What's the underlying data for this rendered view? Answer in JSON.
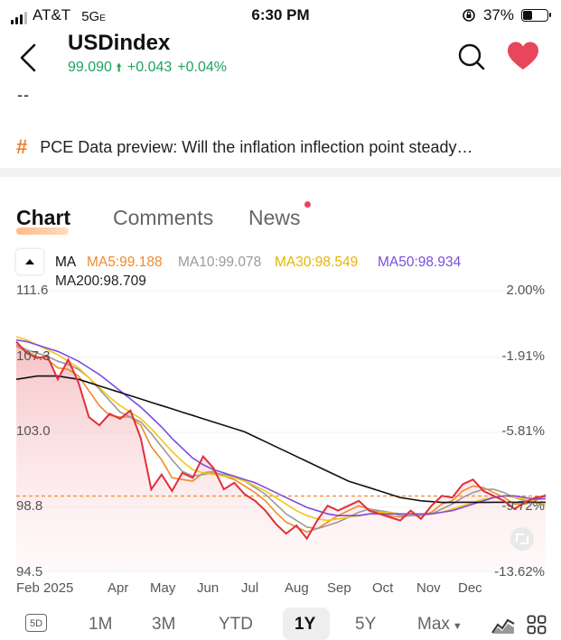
{
  "status": {
    "carrier": "AT&T",
    "network": "5G",
    "network_suffix": "E",
    "time": "6:30 PM",
    "battery": "37%"
  },
  "header": {
    "title": "USDindex",
    "price": "99.090",
    "change": "+0.043",
    "change_pct": "+0.04%",
    "placeholder": "--"
  },
  "news_ticker": "PCE Data preview: Will the inflation inflection point steady…",
  "tabs": {
    "chart": "Chart",
    "comments": "Comments",
    "news": "News"
  },
  "ma": {
    "label": "MA",
    "ma5": "MA5:99.188",
    "ma10": "MA10:99.078",
    "ma30": "MA30:98.549",
    "ma50": "MA50:98.934",
    "ma200": "MA200:98.709"
  },
  "colors": {
    "ma5": "#f08a2c",
    "ma10": "#9a9a9a",
    "ma30": "#f5c518",
    "ma50": "#7b4ce0",
    "ma200": "#111111",
    "price": "#e0303a",
    "up": "#1ea35c",
    "heart": "#e8465a"
  },
  "chart_data": {
    "type": "line",
    "x_ticks": [
      "Feb 2025",
      "Apr",
      "May",
      "Jun",
      "Jul",
      "Aug",
      "Sep",
      "Oct",
      "Nov",
      "Dec"
    ],
    "y_ticks": [
      "111.6",
      "107.3",
      "103.0",
      "98.8",
      "94.5"
    ],
    "y_right_ticks": [
      "2.00%",
      "-1.91%",
      "-5.81%",
      "-9.72%",
      "-13.62%"
    ],
    "ylim": [
      94.5,
      111.6
    ],
    "last_price": 99.09,
    "series": [
      {
        "name": "Price",
        "values": [
          108.5,
          107.8,
          107.5,
          107.6,
          106.2,
          107.4,
          106.0,
          103.9,
          103.4,
          104.1,
          103.8,
          104.3,
          102.6,
          99.5,
          100.4,
          99.4,
          100.5,
          100.2,
          101.5,
          100.8,
          99.5,
          99.9,
          99.2,
          98.8,
          98.2,
          97.4,
          96.8,
          97.3,
          96.5,
          97.6,
          98.5,
          98.2,
          98.5,
          98.8,
          98.2,
          98.0,
          97.8,
          97.6,
          98.2,
          97.7,
          98.5,
          99.1,
          99.0,
          99.8,
          100.1,
          99.4,
          99.1,
          98.8,
          98.3,
          98.7,
          99.0,
          99.09
        ]
      },
      {
        "name": "MA5",
        "values": [
          108.2,
          107.9,
          107.6,
          107.4,
          106.9,
          106.8,
          106.4,
          105.5,
          104.6,
          104.0,
          103.9,
          103.9,
          103.4,
          102.1,
          101.3,
          100.2,
          100.1,
          100.0,
          100.5,
          100.6,
          100.3,
          100.1,
          99.7,
          99.3,
          98.8,
          98.1,
          97.5,
          97.2,
          96.9,
          97.1,
          97.5,
          97.9,
          98.2,
          98.5,
          98.3,
          98.1,
          97.9,
          97.8,
          97.9,
          97.9,
          98.1,
          98.6,
          98.8,
          99.4,
          99.7,
          99.6,
          99.3,
          99.0,
          98.6,
          98.6,
          98.8,
          99.19
        ]
      },
      {
        "name": "MA10",
        "values": [
          108.3,
          108.0,
          107.8,
          107.6,
          107.3,
          107.1,
          106.8,
          106.3,
          105.6,
          104.9,
          104.2,
          103.9,
          103.6,
          102.9,
          102.1,
          101.3,
          100.6,
          100.3,
          100.4,
          100.5,
          100.4,
          100.3,
          100.0,
          99.6,
          99.2,
          98.6,
          98.0,
          97.6,
          97.2,
          97.1,
          97.3,
          97.5,
          97.8,
          98.1,
          98.3,
          98.2,
          98.1,
          97.9,
          97.9,
          97.9,
          98.0,
          98.3,
          98.6,
          99.0,
          99.3,
          99.5,
          99.5,
          99.3,
          99.0,
          98.8,
          98.9,
          99.08
        ]
      },
      {
        "name": "MA30",
        "values": [
          108.8,
          108.6,
          108.3,
          108.0,
          107.7,
          107.3,
          106.9,
          106.3,
          105.7,
          105.1,
          104.6,
          104.2,
          103.8,
          103.2,
          102.5,
          101.8,
          101.2,
          100.7,
          100.5,
          100.4,
          100.3,
          100.2,
          100.0,
          99.7,
          99.4,
          99.0,
          98.6,
          98.2,
          97.9,
          97.7,
          97.6,
          97.7,
          97.8,
          97.9,
          98.0,
          98.1,
          98.1,
          98.0,
          98.0,
          98.0,
          98.0,
          98.1,
          98.3,
          98.5,
          98.7,
          98.9,
          99.0,
          99.1,
          99.0,
          98.9,
          98.7,
          98.55
        ]
      },
      {
        "name": "MA50",
        "values": [
          108.6,
          108.5,
          108.3,
          108.1,
          107.9,
          107.6,
          107.3,
          106.9,
          106.5,
          106.0,
          105.5,
          105.0,
          104.5,
          103.9,
          103.3,
          102.6,
          102.0,
          101.4,
          101.0,
          100.7,
          100.5,
          100.3,
          100.1,
          99.9,
          99.6,
          99.3,
          99.0,
          98.7,
          98.4,
          98.2,
          98.0,
          97.9,
          97.9,
          97.9,
          98.0,
          98.0,
          98.0,
          98.0,
          98.0,
          98.0,
          98.0,
          98.1,
          98.2,
          98.4,
          98.6,
          98.8,
          99.0,
          99.1,
          99.1,
          99.0,
          98.9,
          98.93
        ]
      },
      {
        "name": "MA200",
        "values": [
          106.2,
          106.3,
          106.4,
          106.4,
          106.4,
          106.3,
          106.2,
          106.0,
          105.8,
          105.6,
          105.4,
          105.2,
          105.0,
          104.8,
          104.6,
          104.4,
          104.2,
          104.0,
          103.8,
          103.6,
          103.4,
          103.2,
          103.0,
          102.7,
          102.4,
          102.1,
          101.8,
          101.5,
          101.2,
          100.9,
          100.6,
          100.3,
          100.0,
          99.8,
          99.6,
          99.4,
          99.2,
          99.0,
          98.9,
          98.8,
          98.75,
          98.7,
          98.7,
          98.71,
          98.71,
          98.7,
          98.71,
          98.71,
          98.71,
          98.71,
          98.71,
          98.709
        ]
      }
    ]
  },
  "range": {
    "five_d": "5D",
    "m1": "1M",
    "m3": "3M",
    "ytd": "YTD",
    "y1": "1Y",
    "y5": "5Y",
    "max": "Max"
  }
}
